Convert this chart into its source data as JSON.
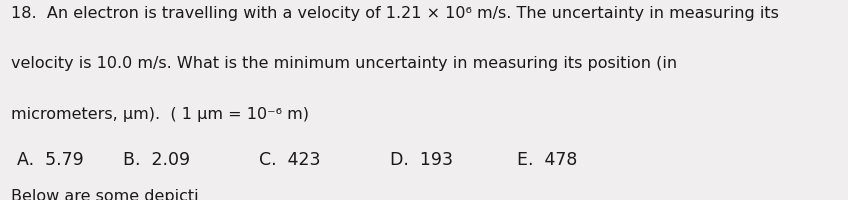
{
  "background_color": "#f0eeee",
  "number": "18.",
  "line1": "An electron is travelling with a velocity of 1.21 × 10⁶ m/s. The uncertainty in measuring its",
  "line2": "velocity is 10.0 m/s. What is the minimum uncertainty in measuring its position (in",
  "line3": "micrometers, μm).  ( 1 μm = 10⁻⁶ m)",
  "answers": [
    "A.  5.79",
    "B.  2.09",
    "C.  423",
    "D.  193",
    "E.  478"
  ],
  "footer": "Below are some depicti",
  "text_color": "#1a1a1a",
  "font_size_body": 11.5,
  "font_size_answers": 12.5
}
